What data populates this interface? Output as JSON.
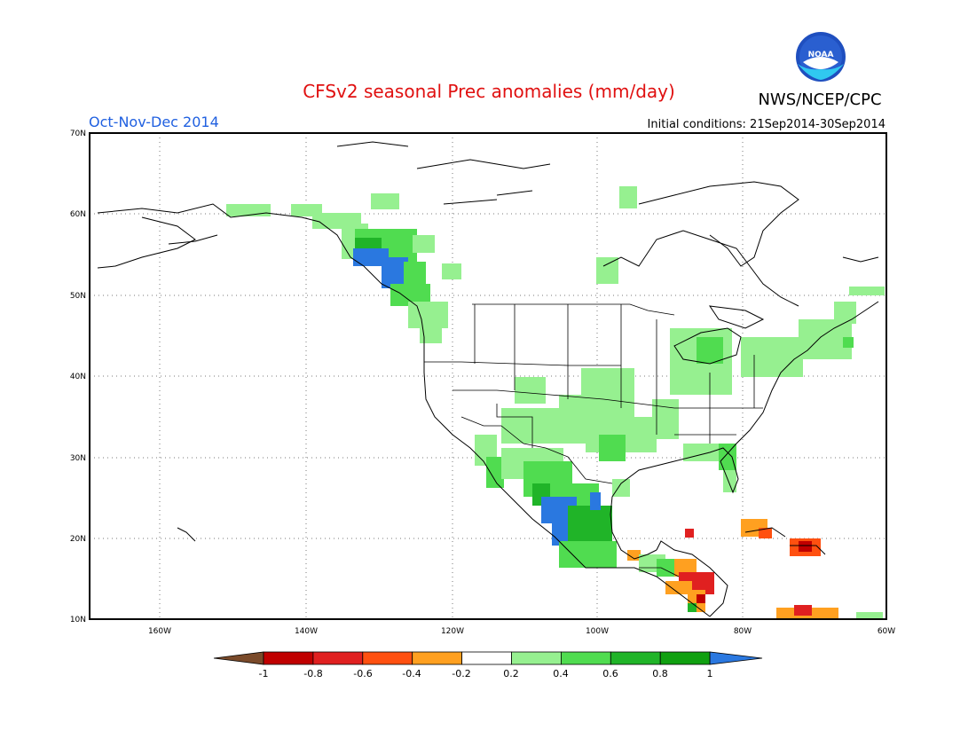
{
  "title": "CFSv2 seasonal Prec anomalies (mm/day)",
  "agency": "NWS/NCEP/CPC",
  "logo_text": "NOAA",
  "period": "Oct-Nov-Dec 2014",
  "initial_conditions": "Initial conditions: 21Sep2014-30Sep2014",
  "lat_labels": [
    "70N",
    "60N",
    "50N",
    "40N",
    "30N",
    "20N",
    "10N"
  ],
  "lon_labels": [
    "160W",
    "140W",
    "120W",
    "100W",
    "80W",
    "60W"
  ],
  "colorbar": {
    "tick_labels": [
      "-1",
      "-0.8",
      "-0.6",
      "-0.4",
      "-0.2",
      "0.2",
      "0.4",
      "0.6",
      "0.8",
      "1"
    ],
    "colors": [
      "#7a4a2a",
      "#c00000",
      "#e02020",
      "#ff5010",
      "#ffa020",
      "#ffffff",
      "#96f090",
      "#50dc50",
      "#20b428",
      "#10a010",
      "#2a78e0"
    ]
  },
  "colors": {
    "title": "#e01010",
    "period": "#2060e0",
    "frame": "#000000"
  }
}
